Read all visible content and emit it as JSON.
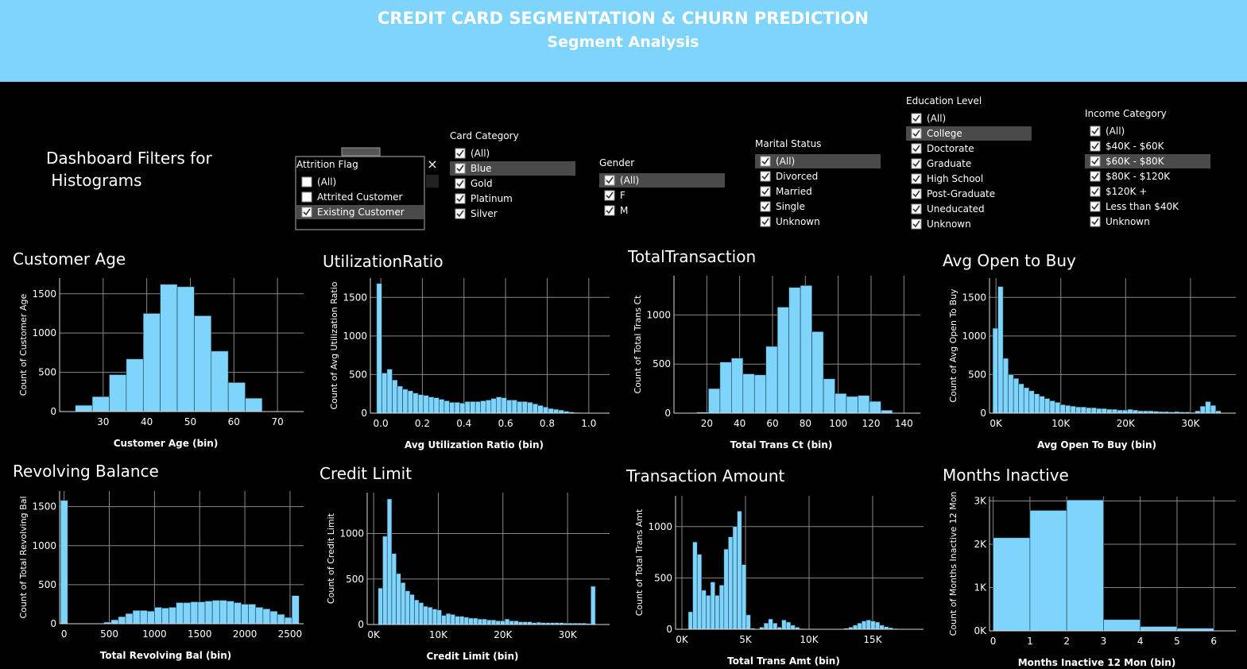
{
  "header": {
    "title": "CREDIT CARD SEGMENTATION & CHURN PREDICTION",
    "subtitle": "Segment Analysis"
  },
  "filters": {
    "heading": "Dashboard Filters for Histograms",
    "groups": [
      {
        "title": "Attrition Flag",
        "items": [
          {
            "label": "(All)",
            "checked": false
          },
          {
            "label": "Attrited Customer",
            "checked": false
          },
          {
            "label": "Existing Customer",
            "checked": true,
            "highlighted": true
          }
        ]
      },
      {
        "title": "Card Category",
        "items": [
          {
            "label": "(All)",
            "checked": true
          },
          {
            "label": "Blue",
            "checked": true,
            "highlighted": true
          },
          {
            "label": "Gold",
            "checked": true
          },
          {
            "label": "Platinum",
            "checked": true
          },
          {
            "label": "Silver",
            "checked": true
          }
        ]
      },
      {
        "title": "Gender",
        "items": [
          {
            "label": "(All)",
            "checked": true,
            "highlighted": true
          },
          {
            "label": "F",
            "checked": true
          },
          {
            "label": "M",
            "checked": true
          }
        ]
      },
      {
        "title": "Marital Status",
        "items": [
          {
            "label": "(All)",
            "checked": true,
            "highlighted": true
          },
          {
            "label": "Divorced",
            "checked": true
          },
          {
            "label": "Married",
            "checked": true
          },
          {
            "label": "Single",
            "checked": true
          },
          {
            "label": "Unknown",
            "checked": true
          }
        ]
      },
      {
        "title": "Education Level",
        "items": [
          {
            "label": "(All)",
            "checked": true
          },
          {
            "label": "College",
            "checked": true,
            "highlighted": true
          },
          {
            "label": "Doctorate",
            "checked": true
          },
          {
            "label": "Graduate",
            "checked": true
          },
          {
            "label": "High School",
            "checked": true
          },
          {
            "label": "Post-Graduate",
            "checked": true
          },
          {
            "label": "Uneducated",
            "checked": true
          },
          {
            "label": "Unknown",
            "checked": true
          }
        ]
      },
      {
        "title": "Income Category",
        "items": [
          {
            "label": "(All)",
            "checked": true
          },
          {
            "label": "$40K - $60K",
            "checked": true
          },
          {
            "label": "$60K - $80K",
            "checked": true,
            "highlighted": true
          },
          {
            "label": "$80K - $120K",
            "checked": true
          },
          {
            "label": "$120K +",
            "checked": true
          },
          {
            "label": "Less than $40K",
            "checked": true
          },
          {
            "label": "Unknown",
            "checked": true
          }
        ]
      }
    ]
  },
  "chart_data": [
    {
      "type": "histogram",
      "title": "Customer Age",
      "x_label": "Customer Age (bin)",
      "y_label": "Count of Customer Age",
      "color": "#7fd4fb",
      "grid": true,
      "bins": [
        23.6,
        27.5,
        31.4,
        35.3,
        39.2,
        43.1,
        47,
        50.9,
        54.8,
        58.7,
        62.6,
        66.5
      ],
      "values": [
        80,
        190,
        470,
        670,
        1250,
        1620,
        1590,
        1220,
        770,
        370,
        170
      ],
      "xlim": [
        20,
        76
      ],
      "xticks": [
        30,
        40,
        50,
        60,
        70
      ],
      "ylim": [
        0,
        1700
      ],
      "yticks": [
        0,
        500,
        1000,
        1500
      ]
    },
    {
      "type": "histogram",
      "title": "UtilizationRatio",
      "x_label": "Avg Utilization Ratio (bin)",
      "y_label": "Count of Avg Utilization Ratio",
      "color": "#7fd4fb",
      "grid": true,
      "bins": [
        -0.02,
        0.005,
        0.03,
        0.055,
        0.08,
        0.105,
        0.13,
        0.155,
        0.18,
        0.205,
        0.23,
        0.255,
        0.28,
        0.305,
        0.33,
        0.355,
        0.38,
        0.405,
        0.43,
        0.455,
        0.48,
        0.505,
        0.53,
        0.555,
        0.58,
        0.605,
        0.63,
        0.655,
        0.68,
        0.705,
        0.73,
        0.755,
        0.78,
        0.805,
        0.83,
        0.855,
        0.88,
        0.905,
        0.93,
        0.955,
        0.98
      ],
      "values": [
        1680,
        520,
        570,
        430,
        350,
        310,
        290,
        260,
        240,
        230,
        210,
        200,
        180,
        160,
        140,
        140,
        130,
        150,
        150,
        150,
        160,
        170,
        190,
        210,
        200,
        170,
        170,
        150,
        150,
        140,
        120,
        100,
        80,
        60,
        50,
        40,
        25,
        15,
        8,
        3
      ],
      "xlim": [
        -0.05,
        1.1
      ],
      "xticks": [
        {
          "value": 0,
          "label": "0.0"
        },
        0.2,
        0.4,
        0.6,
        0.8,
        {
          "value": 1,
          "label": "1.0"
        }
      ],
      "ylim": [
        0,
        1750
      ],
      "yticks": [
        0,
        500,
        1000,
        1500
      ]
    },
    {
      "type": "histogram",
      "title": "TotalTransaction",
      "x_label": "Total Trans Ct (bin)",
      "y_label": "Count of Total Trans Ct",
      "color": "#7fd4fb",
      "grid": true,
      "bins": [
        14,
        21,
        28,
        35,
        42,
        49,
        56,
        63,
        70,
        77,
        84,
        91,
        98,
        105,
        112,
        119,
        126,
        133
      ],
      "values": [
        10,
        250,
        520,
        560,
        400,
        390,
        680,
        1080,
        1280,
        1300,
        830,
        350,
        200,
        170,
        180,
        120,
        30
      ],
      "xlim": [
        0,
        150
      ],
      "xticks": [
        20,
        40,
        60,
        80,
        100,
        120,
        140
      ],
      "ylim": [
        0,
        1400
      ],
      "yticks": [
        0,
        500,
        1000
      ]
    },
    {
      "type": "histogram",
      "title": "Avg Open to Buy",
      "x_label": "Avg Open To Buy (bin)",
      "y_label": "Count of Avg Open To Buy",
      "color": "#7fd4fb",
      "grid": true,
      "bins": [
        -500,
        300,
        1100,
        1900,
        2700,
        3500,
        4300,
        5100,
        5900,
        6700,
        7500,
        8300,
        9100,
        9900,
        10700,
        11500,
        12300,
        13100,
        13900,
        14700,
        15500,
        16300,
        17100,
        17900,
        18700,
        19500,
        20300,
        21100,
        21900,
        22700,
        23500,
        24300,
        25100,
        25900,
        26700,
        27500,
        28300,
        29100,
        29900,
        30700,
        31500,
        32300,
        33100,
        33900,
        34700
      ],
      "values": [
        1100,
        1640,
        710,
        500,
        450,
        380,
        330,
        290,
        250,
        220,
        190,
        160,
        140,
        110,
        100,
        90,
        80,
        80,
        70,
        70,
        60,
        60,
        50,
        50,
        40,
        40,
        50,
        40,
        30,
        30,
        30,
        25,
        20,
        20,
        15,
        20,
        15,
        15,
        10,
        30,
        90,
        150,
        100,
        30
      ],
      "xlim": [
        -1000,
        37000
      ],
      "xticks": [
        {
          "value": 0,
          "label": "0K"
        },
        {
          "value": 10000,
          "label": "10K"
        },
        {
          "value": 20000,
          "label": "20K"
        },
        {
          "value": 30000,
          "label": "30K"
        }
      ],
      "ylim": [
        0,
        1750
      ],
      "yticks": [
        0,
        500,
        1000,
        1500
      ]
    },
    {
      "type": "histogram",
      "title": "Revolving Balance",
      "x_label": "Total Revolving Bal (bin)",
      "y_label": "Count of Total Revolving Bal",
      "color": "#7fd4fb",
      "grid": true,
      "bins": [
        -40,
        40,
        120,
        200,
        280,
        360,
        440,
        520,
        600,
        680,
        760,
        840,
        920,
        1000,
        1080,
        1160,
        1240,
        1320,
        1400,
        1480,
        1560,
        1640,
        1720,
        1800,
        1880,
        1960,
        2040,
        2120,
        2200,
        2280,
        2360,
        2440,
        2520,
        2600
      ],
      "values": [
        1580,
        0,
        0,
        0,
        0,
        0,
        20,
        50,
        90,
        130,
        170,
        170,
        160,
        210,
        200,
        210,
        270,
        270,
        280,
        280,
        290,
        300,
        300,
        290,
        270,
        250,
        250,
        210,
        190,
        160,
        120,
        80,
        360
      ],
      "xlim": [
        -50,
        2650
      ],
      "xticks": [
        0,
        500,
        1000,
        1500,
        2000,
        2500
      ],
      "ylim": [
        0,
        1700
      ],
      "yticks": [
        0,
        500,
        1000,
        1500
      ]
    },
    {
      "type": "histogram",
      "title": "Credit Limit",
      "x_label": "Credit Limit (bin)",
      "y_label": "Count of Credit Limit",
      "color": "#7fd4fb",
      "grid": true,
      "bins": [
        700,
        1400,
        2100,
        2800,
        3500,
        4200,
        4900,
        5600,
        6300,
        7000,
        7700,
        8400,
        9100,
        9800,
        10500,
        11200,
        11900,
        12600,
        13300,
        14000,
        14700,
        15400,
        16100,
        16800,
        17500,
        18200,
        18900,
        19600,
        20300,
        21000,
        21700,
        22400,
        23100,
        23800,
        24500,
        25200,
        25900,
        26600,
        27300,
        28000,
        28700,
        29400,
        30100,
        30800,
        31500,
        32200,
        32900,
        33600,
        34300
      ],
      "values": [
        400,
        970,
        1380,
        780,
        560,
        460,
        370,
        330,
        270,
        240,
        200,
        190,
        170,
        160,
        100,
        120,
        110,
        90,
        90,
        80,
        70,
        70,
        60,
        60,
        50,
        50,
        40,
        40,
        60,
        40,
        40,
        30,
        30,
        30,
        20,
        25,
        20,
        20,
        20,
        20,
        20,
        15,
        15,
        15,
        15,
        15,
        10,
        420
      ],
      "xlim": [
        -1000,
        36500
      ],
      "xticks": [
        {
          "value": 0,
          "label": "0K"
        },
        {
          "value": 10000,
          "label": "10K"
        },
        {
          "value": 20000,
          "label": "20K"
        },
        {
          "value": 30000,
          "label": "30K"
        }
      ],
      "ylim": [
        0,
        1450
      ],
      "yticks": [
        0,
        500,
        1000
      ]
    },
    {
      "type": "histogram",
      "title": "Transaction Amount",
      "x_label": "Total Trans Amt (bin)",
      "y_label": "Count of Total Trans Amt",
      "color": "#7fd4fb",
      "grid": true,
      "bins": [
        500,
        850,
        1200,
        1550,
        1900,
        2250,
        2600,
        2950,
        3300,
        3650,
        4000,
        4350,
        4700,
        5050,
        5400,
        5750,
        6100,
        6450,
        6800,
        7150,
        7500,
        7850,
        8200,
        8550,
        8900,
        9250,
        9600,
        9950,
        10300,
        10650,
        11000,
        11350,
        11700,
        12050,
        12400,
        12750,
        13100,
        13450,
        13800,
        14150,
        14500,
        14850,
        15200,
        15550,
        15900,
        16250,
        16600,
        16950
      ],
      "values": [
        170,
        850,
        730,
        380,
        330,
        460,
        330,
        430,
        780,
        900,
        1000,
        1150,
        630,
        140,
        10,
        0,
        20,
        60,
        100,
        60,
        20,
        90,
        70,
        40,
        20,
        5,
        0,
        0,
        0,
        0,
        0,
        0,
        0,
        0,
        0,
        10,
        20,
        40,
        60,
        80,
        90,
        80,
        70,
        40,
        25,
        15,
        5
      ],
      "xlim": [
        -500,
        19000
      ],
      "xticks": [
        {
          "value": 0,
          "label": "0K"
        },
        {
          "value": 5000,
          "label": "5K"
        },
        {
          "value": 10000,
          "label": "10K"
        },
        {
          "value": 15000,
          "label": "15K"
        }
      ],
      "ylim": [
        0,
        1300
      ],
      "yticks": [
        0,
        500,
        1000
      ]
    },
    {
      "type": "histogram",
      "title": "Months Inactive",
      "x_label": "Months Inactive 12 Mon (bin)",
      "y_label": "Count of Months Inactive 12 Mon",
      "color": "#7fd4fb",
      "grid": true,
      "bins": [
        0,
        1,
        2,
        3,
        4,
        5,
        6
      ],
      "values": [
        2150,
        2780,
        3020,
        260,
        100,
        60
      ],
      "xlim": [
        -0.1,
        6.6
      ],
      "xticks": [
        0,
        1,
        2,
        3,
        4,
        5,
        6
      ],
      "ylim": [
        0,
        3100
      ],
      "yticks": [
        {
          "value": 0,
          "label": "0K"
        },
        {
          "value": 1000,
          "label": "1K"
        },
        {
          "value": 2000,
          "label": "2K"
        },
        {
          "value": 3000,
          "label": "3K"
        }
      ]
    }
  ]
}
